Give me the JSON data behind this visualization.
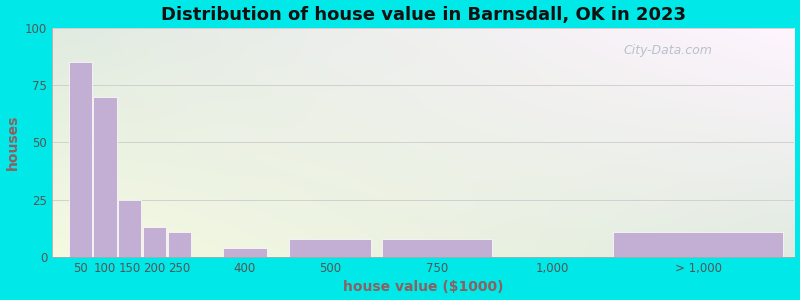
{
  "title": "Distribution of house value in Barnsdall, OK in 2023",
  "xlabel": "house value ($1000)",
  "ylabel": "houses",
  "bar_color": "#c4afd4",
  "bar_edgecolor": "#ffffff",
  "ylim": [
    0,
    100
  ],
  "yticks": [
    0,
    25,
    50,
    75,
    100
  ],
  "background_outer": "#00e8e8",
  "ylim_max": 100,
  "bar_lefts": [
    30,
    75,
    120,
    165,
    210,
    310,
    430,
    600,
    830,
    1020
  ],
  "bar_widths": [
    42,
    42,
    42,
    42,
    42,
    80,
    150,
    200,
    160,
    310
  ],
  "bar_heights": [
    85,
    70,
    25,
    13,
    11,
    4,
    8,
    8,
    0,
    11
  ],
  "xtick_labels": [
    "50",
    "100",
    "150",
    "200",
    "250",
    "400",
    "500",
    "750",
    "1,000",
    "> 1,000"
  ],
  "xtick_positions": [
    51,
    96,
    141,
    186,
    231,
    350,
    505,
    700,
    910,
    1175
  ],
  "title_fontsize": 13,
  "axis_label_fontsize": 10,
  "tick_fontsize": 8.5,
  "label_color": "#8B6060",
  "tick_color": "#555555",
  "grid_color": "#cccccc",
  "watermark": "City-Data.com"
}
